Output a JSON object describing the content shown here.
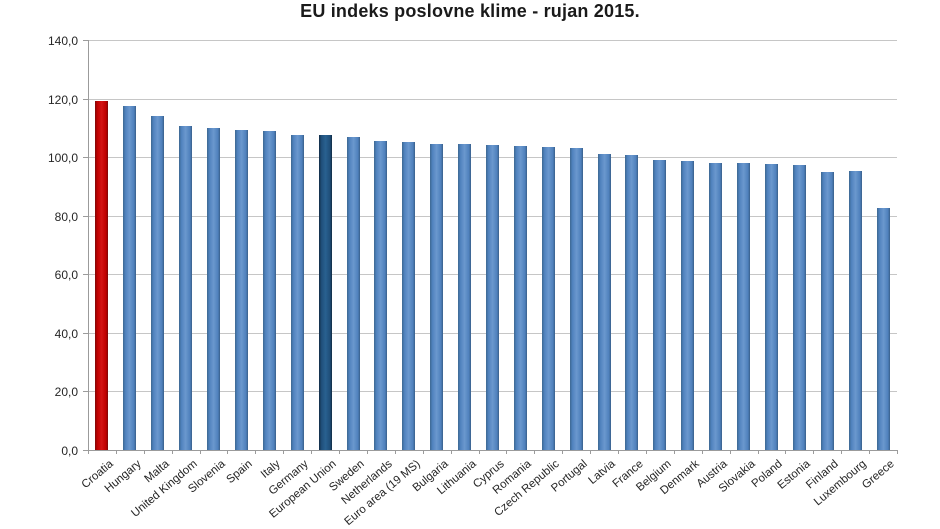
{
  "title": "EU indeks poslovne klime - rujan 2015.",
  "colors": {
    "bar_default": "#4F81BD",
    "bar_highlight": "#C00000",
    "bar_eu": "#1F4E79",
    "gridline": "#C6C6C6",
    "axis_line": "#9B9B9B",
    "text": "#262626",
    "background": "#FFFFFF"
  },
  "chart_data": {
    "type": "bar",
    "title": "EU indeks poslovne klime - rujan 2015.",
    "xlabel": "",
    "ylabel": "",
    "ylim": [
      0,
      140
    ],
    "grid": true,
    "legend": false,
    "yticks": [
      0,
      20,
      40,
      60,
      80,
      100,
      120,
      140
    ],
    "ytick_labels": [
      "0,0",
      "20,0",
      "40,0",
      "60,0",
      "80,0",
      "100,0",
      "120,0",
      "140,0"
    ],
    "categories": [
      "Croatia",
      "Hungary",
      "Malta",
      "United Kingdom",
      "Slovenia",
      "Spain",
      "Italy",
      "Germany",
      "European Union",
      "Sweden",
      "Netherlands",
      "Euro area (19 MS)",
      "Bulgaria",
      "Lithuania",
      "Cyprus",
      "Romania",
      "Czech Republic",
      "Portugal",
      "Latvia",
      "France",
      "Belgium",
      "Denmark",
      "Austria",
      "Slovakia",
      "Poland",
      "Estonia",
      "Finland",
      "Luxembourg",
      "Greece"
    ],
    "values": [
      119.3,
      117.3,
      114.1,
      110.5,
      110.1,
      109.3,
      108.9,
      107.4,
      107.5,
      107.0,
      105.6,
      105.2,
      104.6,
      104.4,
      104.1,
      103.9,
      103.4,
      103.2,
      101.2,
      100.7,
      98.9,
      98.8,
      98.1,
      98.0,
      97.5,
      97.2,
      94.9,
      95.1,
      82.7
    ],
    "bar_styles": [
      "highlight",
      "default",
      "default",
      "default",
      "default",
      "default",
      "default",
      "default",
      "eu",
      "default",
      "default",
      "default",
      "default",
      "default",
      "default",
      "default",
      "default",
      "default",
      "default",
      "default",
      "default",
      "default",
      "default",
      "default",
      "default",
      "default",
      "default",
      "default",
      "default"
    ]
  }
}
